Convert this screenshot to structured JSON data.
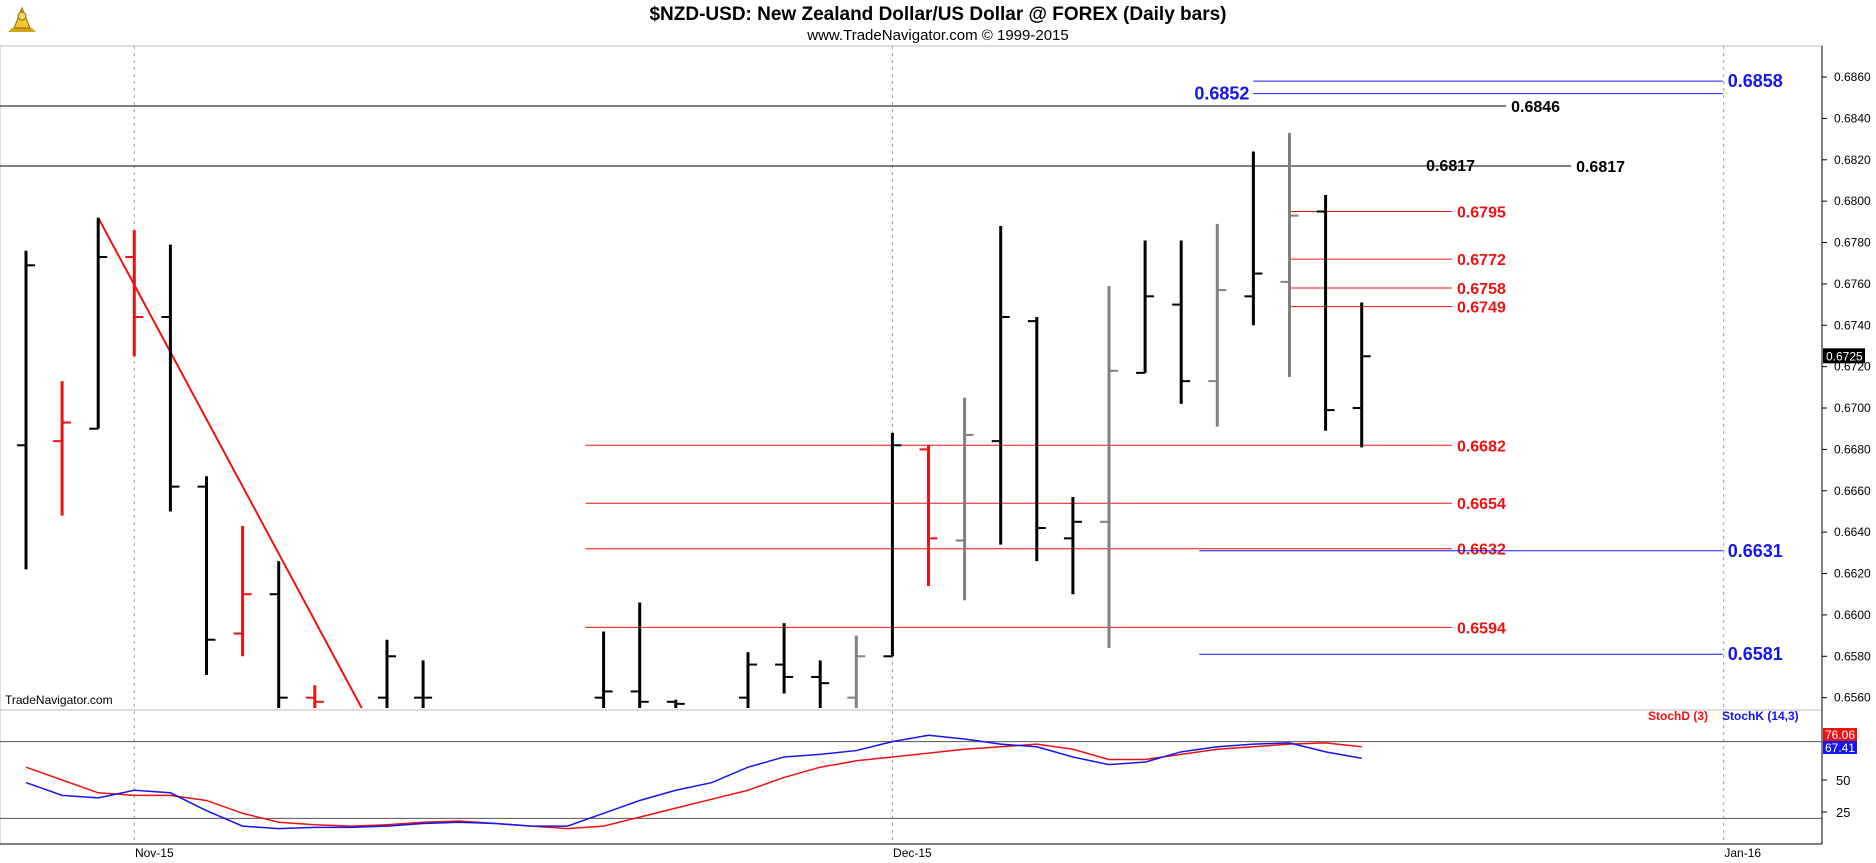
{
  "header": {
    "title": "$NZD-USD:  New Zealand Dollar/US Dollar @ FOREX  (Daily bars)",
    "subtitle": "www.TradeNavigator.com © 1999-2015",
    "watermark": "TradeNavigator.com"
  },
  "colors": {
    "bar_up": "#000000",
    "bar_down": "#ee1111",
    "bar_neutral": "#808080",
    "level_red": "#ee1111",
    "level_blue": "#1515ee",
    "level_black": "#000000",
    "stoch_d": "#ee1111",
    "stoch_k": "#1515ee",
    "grid": "#9a9a9a"
  },
  "chart_data": [
    {
      "type": "bar",
      "subtype": "ohlc",
      "ylim": [
        0.6555,
        0.6875
      ],
      "y_ticks": [
        "0.6560",
        "0.6580",
        "0.6600",
        "0.6620",
        "0.6640",
        "0.6660",
        "0.6680",
        "0.6700",
        "0.6720",
        "0.6740",
        "0.6760",
        "0.6780",
        "0.6800",
        "0.6820",
        "0.6840",
        "0.6860"
      ],
      "x_ticks": [
        {
          "label": "Nov-15",
          "x_index": 3
        },
        {
          "label": "Dec-15",
          "x_index": 24
        },
        {
          "label": "Jan-16",
          "x_index": 47
        }
      ],
      "current_price_label": "0.6725",
      "bars": [
        {
          "i": 0,
          "o": 0.6682,
          "h": 0.6776,
          "l": 0.6622,
          "c": 0.6769,
          "color": "black"
        },
        {
          "i": 1,
          "o": 0.6684,
          "h": 0.6713,
          "l": 0.6648,
          "c": 0.6693,
          "color": "red"
        },
        {
          "i": 2,
          "o": 0.669,
          "h": 0.6792,
          "l": 0.669,
          "c": 0.6773,
          "color": "black"
        },
        {
          "i": 3,
          "o": 0.6773,
          "h": 0.6786,
          "l": 0.6725,
          "c": 0.6744,
          "color": "red"
        },
        {
          "i": 4,
          "o": 0.6744,
          "h": 0.6779,
          "l": 0.665,
          "c": 0.6662,
          "color": "black"
        },
        {
          "i": 5,
          "o": 0.6662,
          "h": 0.6667,
          "l": 0.6571,
          "c": 0.6588,
          "color": "black"
        },
        {
          "i": 6,
          "o": 0.6591,
          "h": 0.6643,
          "l": 0.658,
          "c": 0.661,
          "color": "red"
        },
        {
          "i": 7,
          "o": 0.661,
          "h": 0.6626,
          "l": 0.6555,
          "c": 0.656,
          "color": "black"
        },
        {
          "i": 8,
          "o": 0.656,
          "h": 0.6566,
          "l": 0.6555,
          "c": 0.6558,
          "color": "red"
        },
        {
          "i": 10,
          "o": 0.656,
          "h": 0.6588,
          "l": 0.6555,
          "c": 0.658,
          "color": "black"
        },
        {
          "i": 11,
          "o": 0.656,
          "h": 0.6578,
          "l": 0.6555,
          "c": 0.656,
          "color": "black"
        },
        {
          "i": 16,
          "o": 0.656,
          "h": 0.6592,
          "l": 0.6555,
          "c": 0.6563,
          "color": "black"
        },
        {
          "i": 17,
          "o": 0.6563,
          "h": 0.6606,
          "l": 0.6555,
          "c": 0.6558,
          "color": "black"
        },
        {
          "i": 18,
          "o": 0.6558,
          "h": 0.6559,
          "l": 0.6555,
          "c": 0.6557,
          "color": "black"
        },
        {
          "i": 20,
          "o": 0.656,
          "h": 0.6582,
          "l": 0.6555,
          "c": 0.6576,
          "color": "black"
        },
        {
          "i": 21,
          "o": 0.6576,
          "h": 0.6596,
          "l": 0.6562,
          "c": 0.657,
          "color": "black"
        },
        {
          "i": 22,
          "o": 0.657,
          "h": 0.6578,
          "l": 0.6555,
          "c": 0.6567,
          "color": "black"
        },
        {
          "i": 23,
          "o": 0.656,
          "h": 0.659,
          "l": 0.6555,
          "c": 0.658,
          "color": "gray"
        },
        {
          "i": 24,
          "o": 0.658,
          "h": 0.6688,
          "l": 0.658,
          "c": 0.6682,
          "color": "black"
        },
        {
          "i": 25,
          "o": 0.668,
          "h": 0.6682,
          "l": 0.6614,
          "c": 0.6637,
          "color": "red"
        },
        {
          "i": 26,
          "o": 0.6636,
          "h": 0.6705,
          "l": 0.6607,
          "c": 0.6687,
          "color": "gray"
        },
        {
          "i": 27,
          "o": 0.6684,
          "h": 0.6788,
          "l": 0.6634,
          "c": 0.6744,
          "color": "black"
        },
        {
          "i": 28,
          "o": 0.6742,
          "h": 0.6744,
          "l": 0.6626,
          "c": 0.6642,
          "color": "black"
        },
        {
          "i": 29,
          "o": 0.6637,
          "h": 0.6657,
          "l": 0.661,
          "c": 0.6645,
          "color": "black"
        },
        {
          "i": 30,
          "o": 0.6645,
          "h": 0.6759,
          "l": 0.6584,
          "c": 0.6718,
          "color": "gray"
        },
        {
          "i": 31,
          "o": 0.6717,
          "h": 0.6781,
          "l": 0.6717,
          "c": 0.6754,
          "color": "black"
        },
        {
          "i": 32,
          "o": 0.675,
          "h": 0.6781,
          "l": 0.6702,
          "c": 0.6713,
          "color": "black"
        },
        {
          "i": 33,
          "o": 0.6713,
          "h": 0.6789,
          "l": 0.6691,
          "c": 0.6757,
          "color": "gray"
        },
        {
          "i": 34,
          "o": 0.6754,
          "h": 0.6824,
          "l": 0.674,
          "c": 0.6765,
          "color": "black"
        },
        {
          "i": 35,
          "o": 0.6761,
          "h": 0.6833,
          "l": 0.6715,
          "c": 0.6793,
          "color": "gray"
        },
        {
          "i": 36,
          "o": 0.6795,
          "h": 0.6803,
          "l": 0.6689,
          "c": 0.6699,
          "color": "black"
        },
        {
          "i": 37,
          "o": 0.67,
          "h": 0.6751,
          "l": 0.6681,
          "c": 0.6725,
          "color": "black"
        }
      ],
      "trendline": {
        "from": {
          "i": 2,
          "y": 0.6792
        },
        "to": {
          "i": 9.3,
          "y": 0.6555
        },
        "color": "red"
      },
      "levels": [
        {
          "value": 0.6858,
          "label": "0.6858",
          "color": "blue",
          "from_i": 34,
          "to_i": 47,
          "label_pos": "right"
        },
        {
          "value": 0.6852,
          "label": "0.6852",
          "color": "blue",
          "from_i": 34,
          "to_i": 47,
          "label_pos": "left-of-start"
        },
        {
          "value": 0.6846,
          "label": "0.6846",
          "color": "black",
          "from_i": -3,
          "to_i": 41,
          "label_pos": "end"
        },
        {
          "value": 0.6817,
          "label": "0.6817",
          "color": "black",
          "from_i": -3,
          "to_i": 42.8,
          "label_pos": "end",
          "extra_label": "0.6817"
        },
        {
          "value": 0.6795,
          "label": "0.6795",
          "color": "red",
          "from_i": 35,
          "to_i": 39.5,
          "label_pos": "end"
        },
        {
          "value": 0.6772,
          "label": "0.6772",
          "color": "red",
          "from_i": 35,
          "to_i": 39.5,
          "label_pos": "end"
        },
        {
          "value": 0.6758,
          "label": "0.6758",
          "color": "red",
          "from_i": 35,
          "to_i": 39.5,
          "label_pos": "end"
        },
        {
          "value": 0.6749,
          "label": "0.6749",
          "color": "red",
          "from_i": 35,
          "to_i": 39.5,
          "label_pos": "end"
        },
        {
          "value": 0.6682,
          "label": "0.6682",
          "color": "red",
          "from_i": 15.5,
          "to_i": 39.5,
          "label_pos": "end"
        },
        {
          "value": 0.6654,
          "label": "0.6654",
          "color": "red",
          "from_i": 15.5,
          "to_i": 39.5,
          "label_pos": "end"
        },
        {
          "value": 0.6632,
          "label": "0.6632",
          "color": "red",
          "from_i": 15.5,
          "to_i": 39.5,
          "label_pos": "end"
        },
        {
          "value": 0.6631,
          "label": "0.6631",
          "color": "blue",
          "from_i": 32.5,
          "to_i": 47,
          "label_pos": "right"
        },
        {
          "value": 0.6594,
          "label": "0.6594",
          "color": "red",
          "from_i": 15.5,
          "to_i": 39.5,
          "label_pos": "end"
        },
        {
          "value": 0.6581,
          "label": "0.6581",
          "color": "blue",
          "from_i": 32.5,
          "to_i": 47,
          "label_pos": "right"
        }
      ]
    },
    {
      "type": "line",
      "ylim": [
        0,
        100
      ],
      "y_ticks": [
        "25",
        "50"
      ],
      "reference_lines": [
        80,
        20
      ],
      "legend": [
        {
          "name": "StochD (3)",
          "color": "red"
        },
        {
          "name": "StochK (14,3)",
          "color": "blue"
        }
      ],
      "value_labels": {
        "stoch_d": "76.06",
        "stoch_k": "67.41"
      },
      "series": [
        {
          "name": "StochD (3)",
          "x": [
            0,
            1,
            2,
            3,
            4,
            5,
            6,
            7,
            8,
            9,
            10,
            11,
            12,
            13,
            14,
            15,
            16,
            17,
            18,
            19,
            20,
            21,
            22,
            23,
            24,
            25,
            26,
            27,
            28,
            29,
            30,
            31,
            32,
            33,
            34,
            35,
            36,
            37
          ],
          "values": [
            60,
            50,
            40,
            38,
            38,
            34,
            24,
            17,
            15,
            14,
            15,
            17,
            18,
            16,
            14,
            12,
            14,
            21,
            28,
            35,
            42,
            52,
            60,
            65,
            68,
            71,
            74,
            76,
            78,
            74,
            66,
            66,
            70,
            74,
            76,
            78,
            79,
            76
          ]
        },
        {
          "name": "StochK (14,3)",
          "x": [
            0,
            1,
            2,
            3,
            4,
            5,
            6,
            7,
            8,
            9,
            10,
            11,
            12,
            13,
            14,
            15,
            16,
            17,
            18,
            19,
            20,
            21,
            22,
            23,
            24,
            25,
            26,
            27,
            28,
            29,
            30,
            31,
            32,
            33,
            34,
            35,
            36,
            37
          ],
          "values": [
            48,
            38,
            36,
            42,
            40,
            26,
            14,
            12,
            13,
            13,
            14,
            16,
            17,
            16,
            14,
            14,
            24,
            34,
            42,
            48,
            60,
            68,
            70,
            73,
            80,
            85,
            82,
            78,
            76,
            68,
            62,
            64,
            72,
            76,
            78,
            79,
            72,
            67
          ]
        }
      ]
    }
  ]
}
